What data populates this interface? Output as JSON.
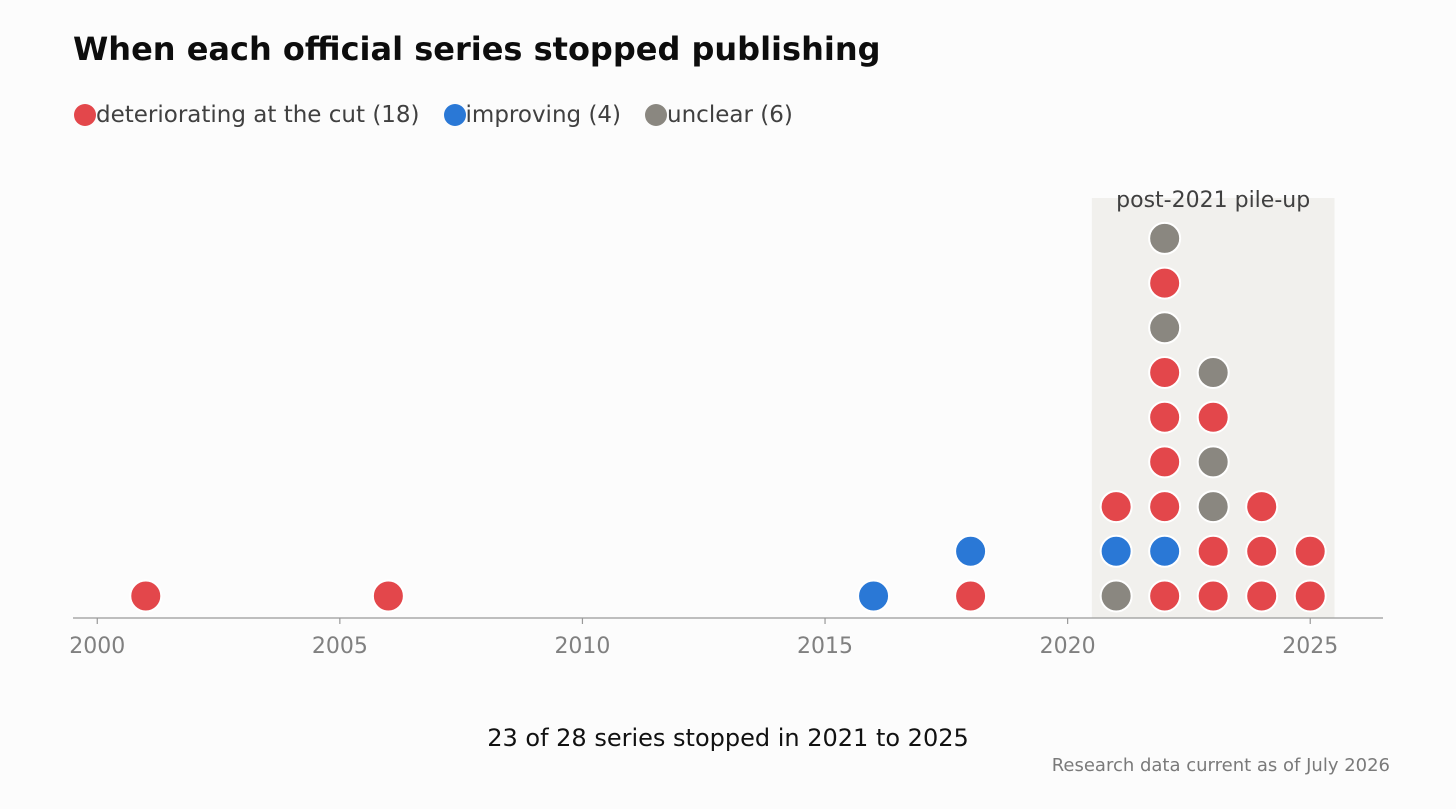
{
  "title": "When each official series stopped publishing",
  "legend": [
    {
      "key": "deteriorating",
      "label": "deteriorating at the cut (18)",
      "color": "#e3474b"
    },
    {
      "key": "improving",
      "label": "improving (4)",
      "color": "#2a78d6"
    },
    {
      "key": "unclear",
      "label": "unclear (6)",
      "color": "#8a8780"
    }
  ],
  "caption": "23 of 28 series stopped in 2021 to 2025",
  "note": "Research data current as of July 2026",
  "chart_data": {
    "type": "scatter",
    "subtype": "dot-plot (stacked per year)",
    "title": "When each official series stopped publishing",
    "xlabel": "",
    "ylabel": "",
    "xlim": [
      1999.5,
      2026.5
    ],
    "xticks": [
      2000,
      2005,
      2010,
      2015,
      2020,
      2025
    ],
    "grid": false,
    "legend_position": "top-left",
    "highlight_band": {
      "from": 2020.5,
      "to": 2025.5,
      "label": "post-2021 pile-up",
      "color": "#f1f0ed"
    },
    "stacks": [
      {
        "year": 2001,
        "dots": [
          "deteriorating"
        ]
      },
      {
        "year": 2006,
        "dots": [
          "deteriorating"
        ]
      },
      {
        "year": 2016,
        "dots": [
          "improving"
        ]
      },
      {
        "year": 2018,
        "dots": [
          "deteriorating",
          "improving"
        ]
      },
      {
        "year": 2021,
        "dots": [
          "unclear",
          "improving",
          "deteriorating"
        ]
      },
      {
        "year": 2022,
        "dots": [
          "deteriorating",
          "improving",
          "deteriorating",
          "deteriorating",
          "deteriorating",
          "deteriorating",
          "unclear",
          "deteriorating",
          "unclear"
        ]
      },
      {
        "year": 2023,
        "dots": [
          "deteriorating",
          "deteriorating",
          "unclear",
          "unclear",
          "deteriorating",
          "unclear"
        ]
      },
      {
        "year": 2024,
        "dots": [
          "deteriorating",
          "deteriorating",
          "deteriorating"
        ]
      },
      {
        "year": 2025,
        "dots": [
          "deteriorating",
          "deteriorating"
        ]
      }
    ]
  }
}
